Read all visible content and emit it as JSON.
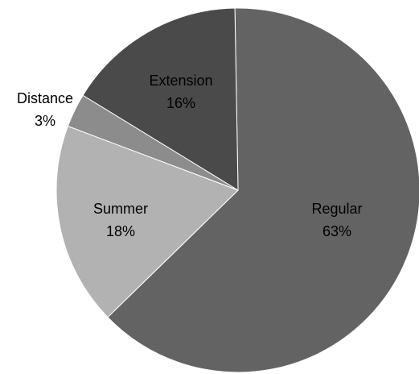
{
  "chart_data": {
    "type": "pie",
    "title": "",
    "start_angle_deg": -1,
    "direction": "clockwise",
    "slices": [
      {
        "name": "Regular",
        "pct_label": "63%",
        "value": 63,
        "color": "#636363"
      },
      {
        "name": "Summer",
        "pct_label": "18%",
        "value": 18,
        "color": "#b2b2b2"
      },
      {
        "name": "Distance",
        "pct_label": "3%",
        "value": 3,
        "color": "#8c8c8c"
      },
      {
        "name": "Extension",
        "pct_label": "16%",
        "value": 16,
        "color": "#4a4a4a"
      }
    ],
    "edge_color": "#ffffff"
  }
}
